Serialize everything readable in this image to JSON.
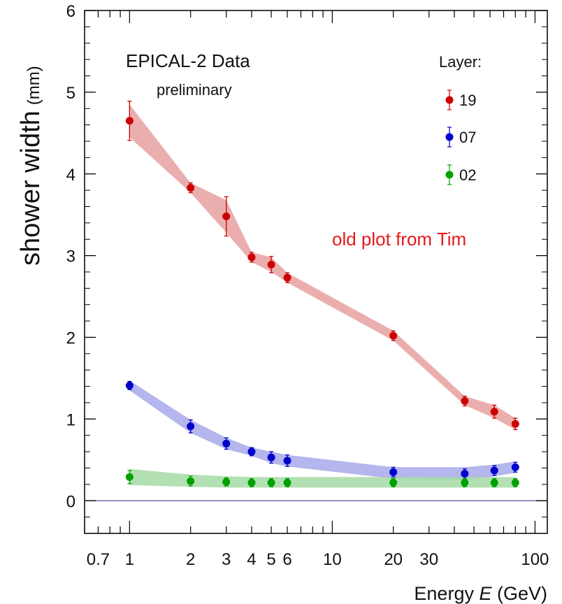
{
  "chart_data": {
    "type": "scatter",
    "title": "EPICAL-2 Data",
    "subtitle": "preliminary",
    "annotation": "old plot from Tim",
    "annotation_color": "#e41a1c",
    "xlabel": {
      "prefix": "Energy ",
      "var": "E",
      "suffix": " (GeV)"
    },
    "ylabel": {
      "main": "shower width",
      "unit": "(mm)"
    },
    "x_scale": "log",
    "xlim": [
      0.6,
      115
    ],
    "ylim": [
      -0.4,
      6
    ],
    "x_ticks": [
      0.7,
      1,
      2,
      3,
      4,
      5,
      6,
      10,
      20,
      30,
      100
    ],
    "x_tick_labels": [
      "0.7",
      "1",
      "2",
      "3",
      "4",
      "5",
      "6",
      "10",
      "20",
      "30",
      "100"
    ],
    "y_ticks": [
      0,
      1,
      2,
      3,
      4,
      5,
      6
    ],
    "y_tick_labels": [
      "0",
      "1",
      "2",
      "3",
      "4",
      "5",
      "6"
    ],
    "legend": {
      "title": "Layer:",
      "position": "top-right"
    },
    "x": [
      1,
      2,
      3,
      4,
      5,
      6,
      20,
      45,
      63,
      80
    ],
    "series": [
      {
        "name": "19",
        "color": "#cc0000",
        "band_color": "#e8a0a0",
        "y": [
          4.65,
          3.83,
          3.48,
          2.98,
          2.89,
          2.73,
          2.02,
          1.22,
          1.09,
          0.94
        ],
        "err": [
          0.24,
          0.06,
          0.24,
          0.06,
          0.1,
          0.06,
          0.06,
          0.06,
          0.08,
          0.07
        ],
        "band_lo": [
          4.45,
          3.77,
          3.28,
          2.92,
          2.8,
          2.67,
          1.96,
          1.17,
          1.01,
          0.87
        ],
        "band_hi": [
          4.85,
          3.89,
          3.68,
          3.04,
          2.98,
          2.79,
          2.08,
          1.28,
          1.17,
          1.01
        ]
      },
      {
        "name": "07",
        "color": "#0000cc",
        "band_color": "#a7a9ea",
        "y": [
          1.41,
          0.91,
          0.7,
          0.6,
          0.53,
          0.49,
          0.35,
          0.33,
          0.37,
          0.41
        ],
        "err": [
          0.05,
          0.08,
          0.07,
          0.05,
          0.07,
          0.07,
          0.06,
          0.06,
          0.06,
          0.06
        ],
        "band_lo": [
          1.35,
          0.83,
          0.63,
          0.55,
          0.46,
          0.42,
          0.27,
          0.25,
          0.3,
          0.34
        ],
        "band_hi": [
          1.47,
          0.99,
          0.77,
          0.65,
          0.6,
          0.56,
          0.41,
          0.41,
          0.44,
          0.48
        ]
      },
      {
        "name": "02",
        "color": "#00a000",
        "band_color": "#a6dba6",
        "y": [
          0.29,
          0.24,
          0.23,
          0.22,
          0.22,
          0.22,
          0.22,
          0.22,
          0.22,
          0.22
        ],
        "err": [
          0.08,
          0.06,
          0.05,
          0.05,
          0.05,
          0.05,
          0.05,
          0.05,
          0.05,
          0.05
        ],
        "band_lo": [
          0.19,
          0.17,
          0.16,
          0.16,
          0.16,
          0.16,
          0.16,
          0.16,
          0.16,
          0.16
        ],
        "band_hi": [
          0.39,
          0.32,
          0.3,
          0.29,
          0.29,
          0.29,
          0.29,
          0.29,
          0.29,
          0.29
        ]
      }
    ]
  }
}
